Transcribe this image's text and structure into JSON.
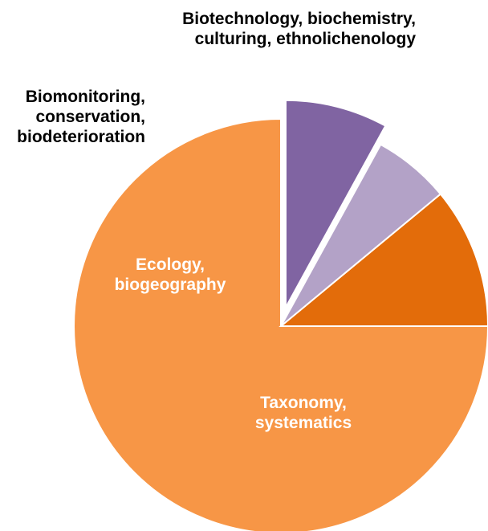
{
  "chart_data": {
    "type": "pie",
    "title": "",
    "start_angle_deg": -90,
    "direction": "counterclockwise",
    "slices": [
      {
        "label_lines": [
          "Taxonomy,",
          "systematics"
        ],
        "value": 75,
        "color": "#F79646",
        "label_color": "#FFFFFF"
      },
      {
        "label_lines": [
          "Ecology,",
          "biogeography"
        ],
        "value": 11,
        "color": "#E36C0A",
        "label_color": "#FFFFFF"
      },
      {
        "label_lines": [
          "Biomonitoring,",
          "conservation,",
          "biodeterioration"
        ],
        "value": 6,
        "color": "#B3A2C7",
        "label_color": "#000000"
      },
      {
        "label_lines": [
          "Biotechnology, biochemistry,",
          "culturing, ethnolichenology"
        ],
        "value": 8,
        "color": "#8064A2",
        "label_color": "#000000"
      }
    ]
  }
}
